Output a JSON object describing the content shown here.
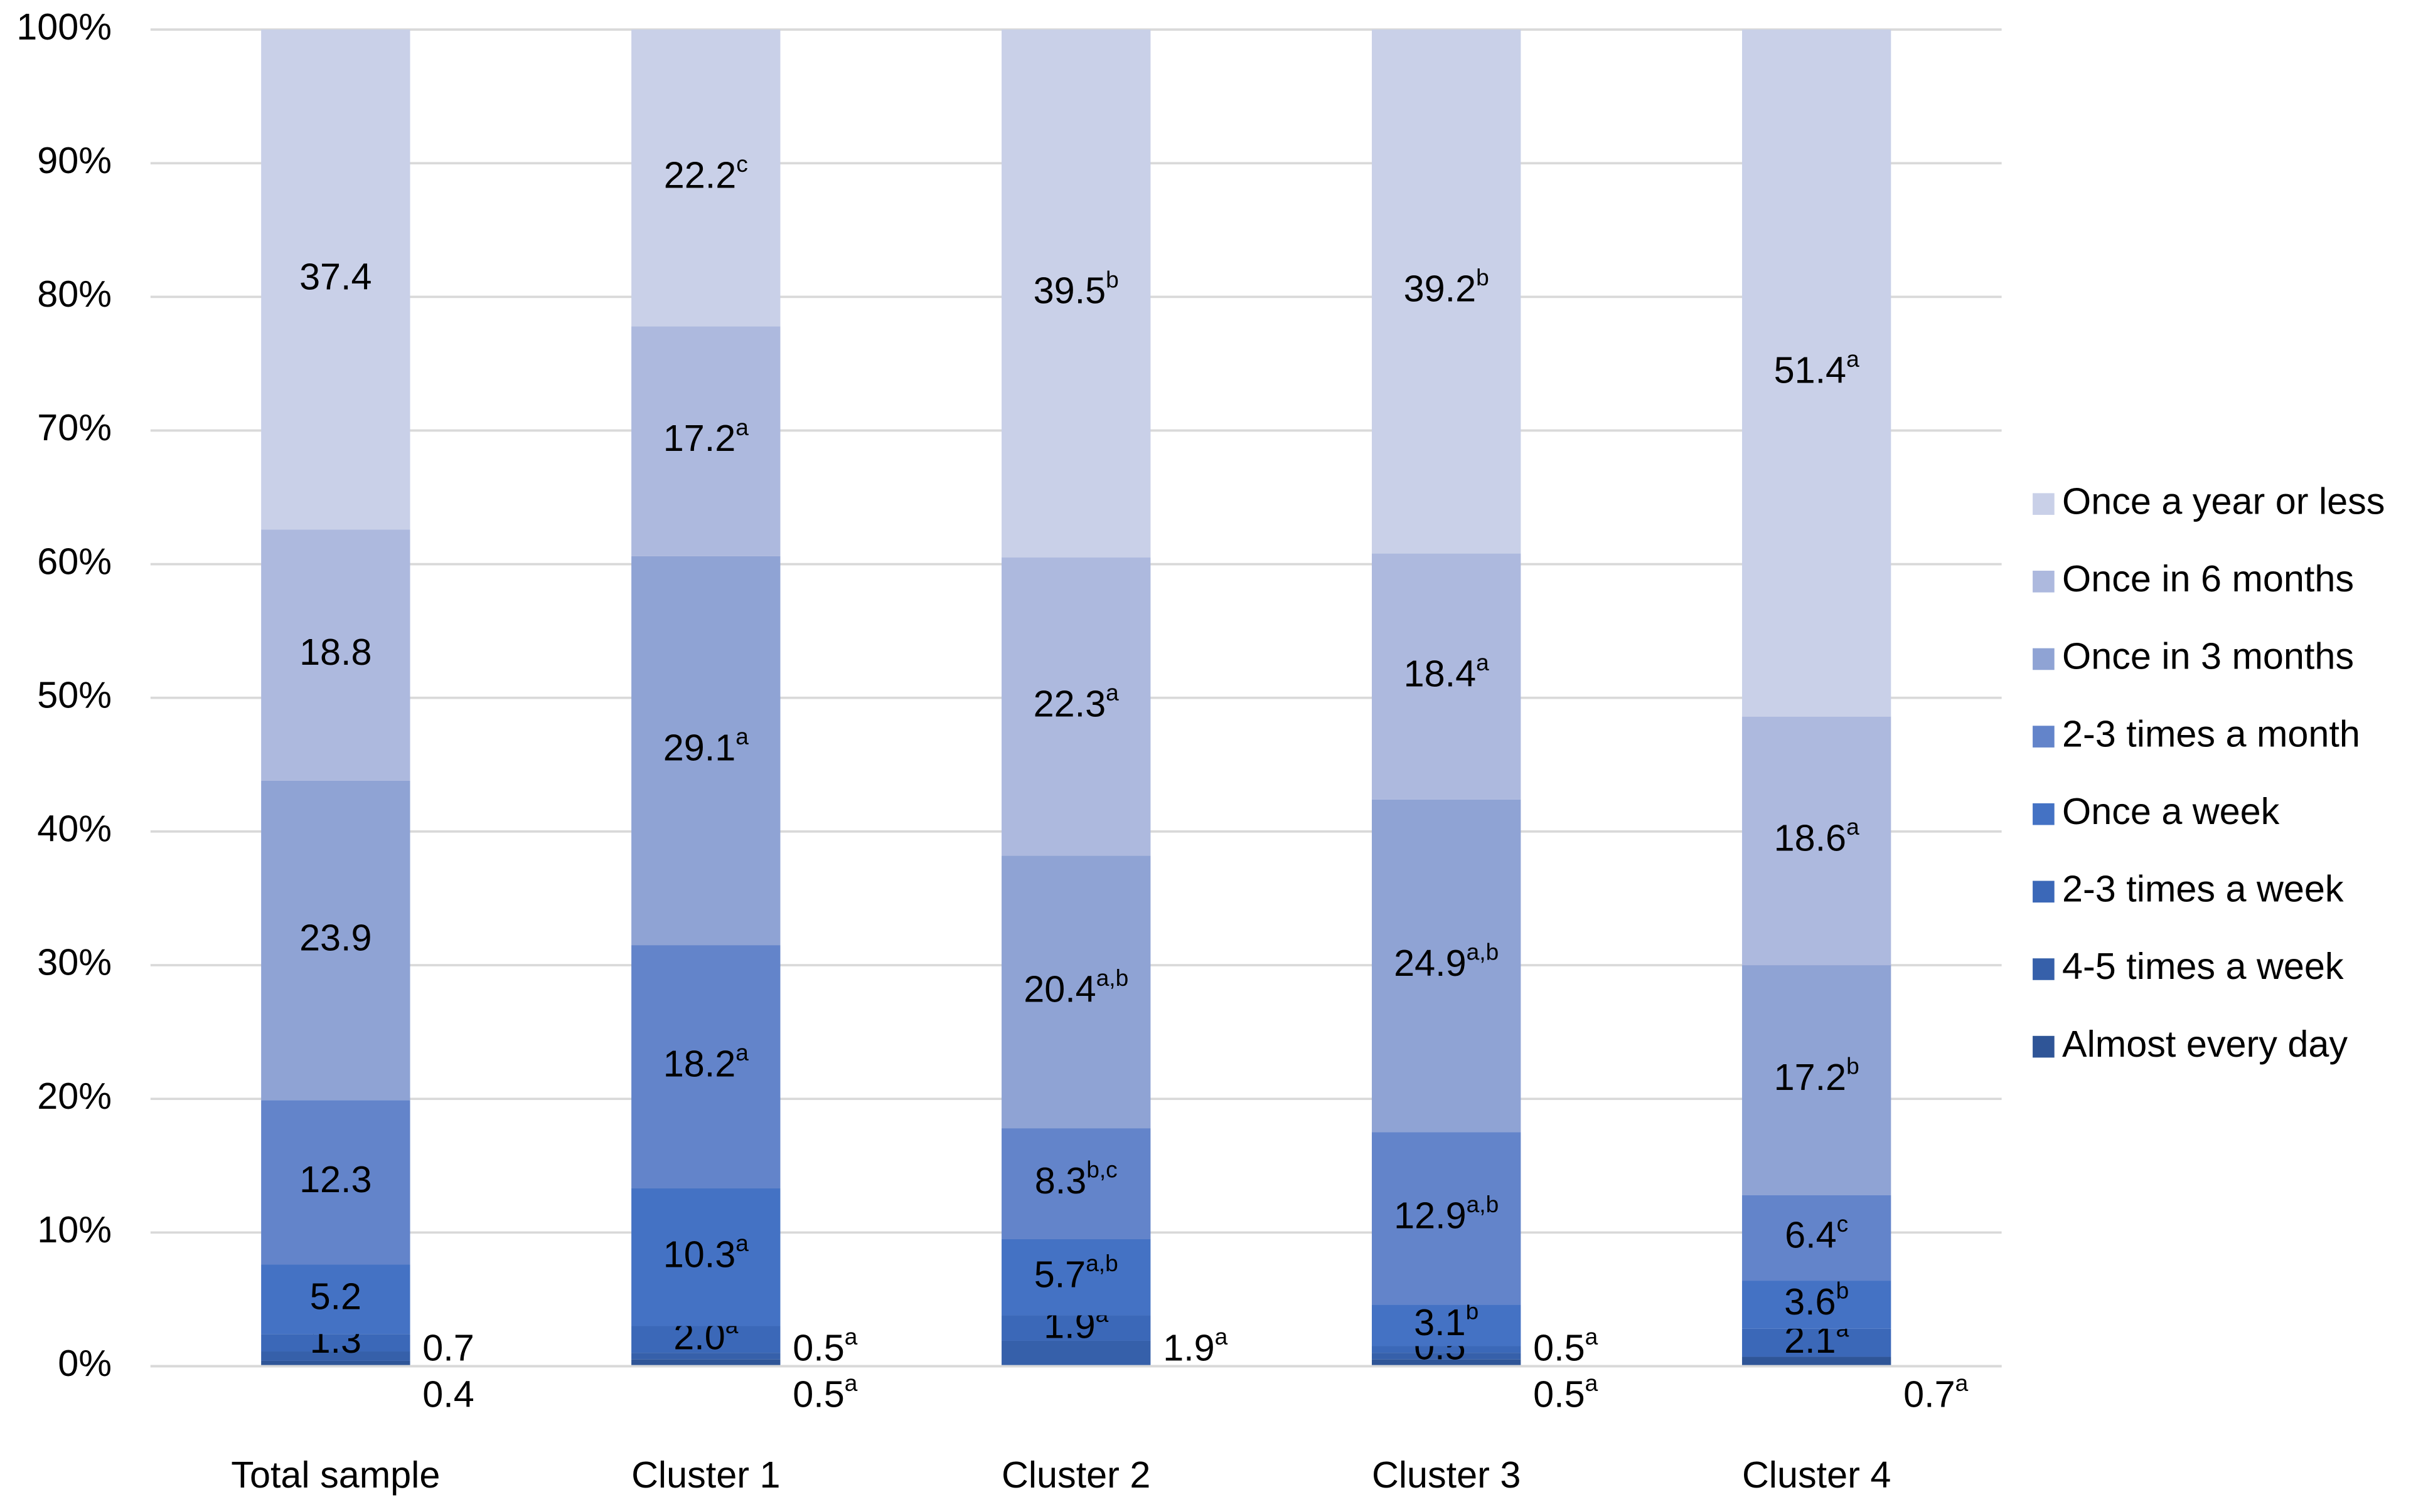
{
  "chart_data": {
    "type": "stacked_bar",
    "categories": [
      "Total sample",
      "Cluster 1",
      "Cluster 2",
      "Cluster 3",
      "Cluster 4"
    ],
    "series": [
      {
        "name": "Almost every day",
        "color": "#2f5597",
        "values": [
          0.4,
          0.5,
          null,
          0.5,
          0.7
        ],
        "value_labels": [
          "0.4",
          "0.5a",
          null,
          "0.5a",
          "0.7a"
        ]
      },
      {
        "name": "4-5 times a week",
        "color": "#3660aa",
        "values": [
          0.7,
          0.5,
          1.9,
          0.5,
          null
        ],
        "value_labels": [
          "0.7",
          "0.5a",
          "1.9a",
          "0.5a",
          null
        ]
      },
      {
        "name": "2-3 times a week",
        "color": "#3b68b8",
        "values": [
          1.3,
          2.0,
          1.9,
          0.5,
          2.1
        ],
        "value_labels": [
          "1.3",
          "2.0a",
          "1.9a",
          "0.5a",
          "2.1a"
        ]
      },
      {
        "name": "Once a week",
        "color": "#4472c4",
        "values": [
          5.2,
          10.3,
          5.7,
          3.1,
          3.6
        ],
        "value_labels": [
          "5.2",
          "10.3a",
          "5.7a,b",
          "3.1b",
          "3.6b"
        ]
      },
      {
        "name": "2-3 times a month",
        "color": "#6384ca",
        "values": [
          12.3,
          18.2,
          8.3,
          12.9,
          6.4
        ],
        "value_labels": [
          "12.3",
          "18.2a",
          "8.3b,c",
          "12.9a,b",
          "6.4c"
        ]
      },
      {
        "name": "Once in 3 months",
        "color": "#8fa3d4",
        "values": [
          23.9,
          29.1,
          20.4,
          24.9,
          17.2
        ],
        "value_labels": [
          "23.9",
          "29.1a",
          "20.4a,b",
          "24.9a,b",
          "17.2b"
        ]
      },
      {
        "name": "Once in 6 months",
        "color": "#adb9de",
        "values": [
          18.8,
          17.2,
          22.3,
          18.4,
          18.6
        ],
        "value_labels": [
          "18.8",
          "17.2a",
          "22.3a",
          "18.4a",
          "18.6a"
        ]
      },
      {
        "name": "Once a year or less",
        "color": "#c9d0e8",
        "values": [
          37.4,
          22.2,
          39.5,
          39.2,
          51.4
        ],
        "value_labels": [
          "37.4",
          "22.2c",
          "39.5b",
          "39.2b",
          "51.4a"
        ]
      }
    ],
    "ylim": [
      0,
      100
    ],
    "yticks": [
      {
        "value": 0,
        "label": "0%"
      },
      {
        "value": 10,
        "label": "10%"
      },
      {
        "value": 20,
        "label": "20%"
      },
      {
        "value": 30,
        "label": "30%"
      },
      {
        "value": 40,
        "label": "40%"
      },
      {
        "value": 50,
        "label": "50%"
      },
      {
        "value": 60,
        "label": "60%"
      },
      {
        "value": 70,
        "label": "70%"
      },
      {
        "value": 80,
        "label": "80%"
      },
      {
        "value": 90,
        "label": "90%"
      },
      {
        "value": 100,
        "label": "100%"
      }
    ],
    "grid": true,
    "legend": "right"
  }
}
